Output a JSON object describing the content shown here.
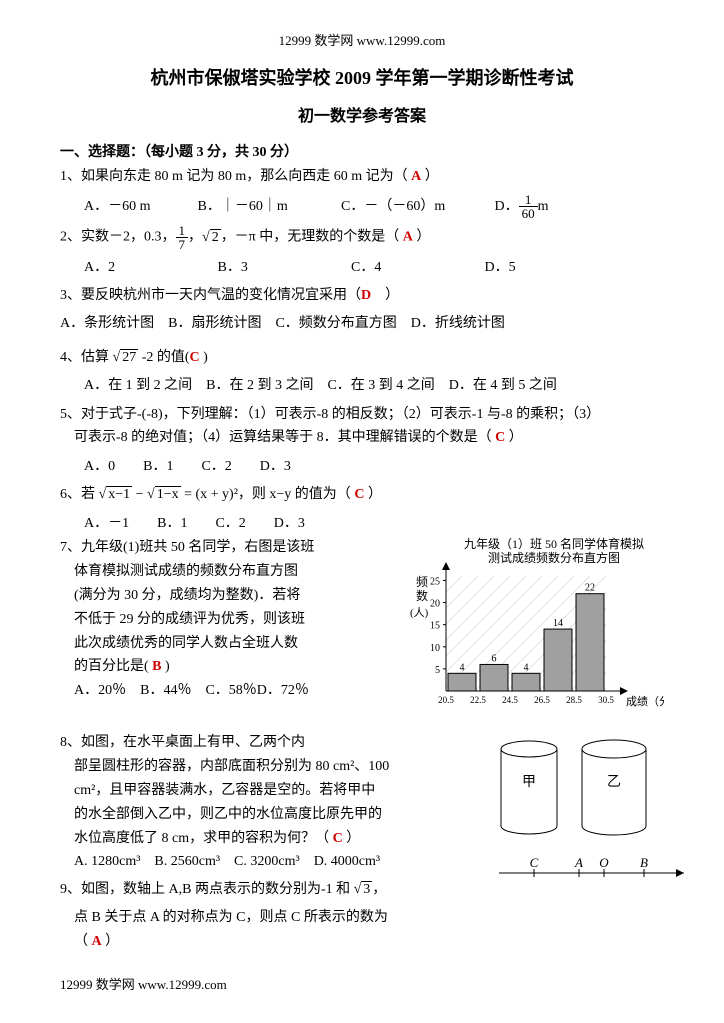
{
  "header": "12999 数学网  www.12999.com",
  "title": "杭州市保俶塔实验学校 2009 学年第一学期诊断性考试",
  "subtitle": "初一数学参考答案",
  "section1": "一、选择题：（每小题 3 分，共 30 分）",
  "q1": {
    "stem": "1、如果向东走 80 m 记为 80 m，那么向西走 60 m 记为（",
    "ans": "A",
    "tail": "）",
    "A": "A．－60 m",
    "B": "B．｜－60｜m",
    "C": "C．－（－60）m",
    "D_pre": "D．",
    "D_num": "1",
    "D_den": "60",
    "D_post": " m"
  },
  "q2": {
    "pre": "2、实数－2，0.3，",
    "f_num": "1",
    "f_den": "7",
    "mid1": "，",
    "sqrt2": "2",
    "mid2": "，－π 中，无理数的个数是（",
    "ans": "A",
    "tail": "）",
    "A": "A．2",
    "B": "B．3",
    "C": "C．4",
    "D": "D．5"
  },
  "q3": {
    "stem": "3、要反映杭州市一天内气温的变化情况宜采用（",
    "ans": "D",
    "tail": "）",
    "opts": "A．条形统计图　B．扇形统计图　C．频数分布直方图　D．折线统计图"
  },
  "q4": {
    "pre": "4、估算 ",
    "sqrt": "27",
    "post": " -2 的值(",
    "ans": "C",
    "tail": " )",
    "opts": "A．在 1 到 2 之间　B．在 2 到 3 之间　C．在 3 到 4 之间　D．在 4 到 5 之间"
  },
  "q5": {
    "l1": "5、对于式子-(-8)，下列理解：（1）可表示-8 的相反数；（2）可表示-1 与-8 的乘积；（3）",
    "l2": "可表示-8 的绝对值；（4）运算结果等于 8．其中理解错误的个数是（",
    "ans": "C",
    "tail": "）",
    "opts": "A．0　　B．1　　C．2　　D．3"
  },
  "q6": {
    "pre": "6、若 ",
    "sqrtA": "x−1",
    "minus": " − ",
    "sqrtB": "1−x",
    "eq": " = (x + y)²，则 x−y 的值为（",
    "ans": "C",
    "tail": "）",
    "opts": "A．－1　　B．1　　C．2　　D．3"
  },
  "q7": {
    "l1": "7、九年级(1)班共 50 名同学，右图是该班",
    "l2": "体育模拟测试成绩的频数分布直方图",
    "l3": "(满分为 30 分，成绩均为整数)．若将",
    "l4": "不低于 29 分的成绩评为优秀，则该班",
    "l5": "此次成绩优秀的同学人数占全班人数",
    "l6": "的百分比是(",
    "ans": "B",
    "tail": ")",
    "opts": "A．20％　B．44％　C．58％D．72％",
    "chart": {
      "title1": "九年级（1）班 50 名同学体育模拟",
      "title2": "测试成绩频数分布直方图",
      "ylabel1": "频",
      "ylabel2": "数",
      "ylabel3": "(人)",
      "xlabel": "成绩（分）",
      "yticks": [
        "5",
        "10",
        "15",
        "20",
        "25"
      ],
      "xticks": [
        "20.5",
        "22.5",
        "24.5",
        "26.5",
        "28.5",
        "30.5"
      ],
      "bars": [
        4,
        6,
        4,
        14,
        22
      ],
      "bar_labels": [
        "4",
        "6",
        "4",
        "14",
        "22"
      ],
      "ymax": 26,
      "bg": "#ffffff",
      "grid": "#b0b0b0",
      "bar_fill": "#a0a0a0",
      "bar_stroke": "#000000"
    }
  },
  "q8": {
    "l1": "8、如图，在水平桌面上有甲、乙两个内",
    "l2": "部呈圆柱形的容器，内部底面积分别为 80 cm²、100",
    "l3": "cm²，且甲容器装满水，乙容器是空的。若将甲中",
    "l4": "的水全部倒入乙中，则乙中的水位高度比原先甲的",
    "l5": "水位高度低了 8 cm，求甲的容积为何？（",
    "ans": "C",
    "tail": "）",
    "opts": "A. 1280cm³　B. 2560cm³　C. 3200cm³　D. 4000cm³",
    "labelA": "甲",
    "labelB": "乙"
  },
  "q9": {
    "pre": "9、如图，数轴上 A,B 两点表示的数分别为-1 和 ",
    "sqrt": "3",
    "post": "，",
    "l2": "点 B 关于点 A 的对称点为 C，则点 C 所表示的数为",
    "l3": "（",
    "ans": "A",
    "tail": "）",
    "axis": {
      "C": "C",
      "A": "A",
      "O": "O",
      "B": "B"
    }
  },
  "footer": "12999 数学网  www.12999.com"
}
